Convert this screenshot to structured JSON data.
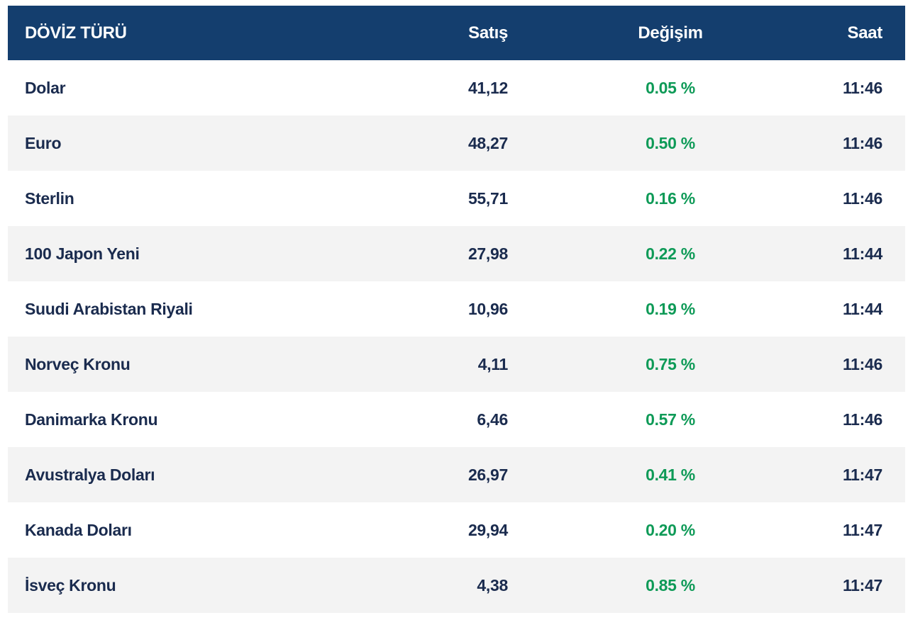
{
  "colors": {
    "header_bg": "#143E6E",
    "header_text": "#FFFFFF",
    "text": "#1A2B4E",
    "positive": "#0E9A57",
    "stripe": "#F3F3F3"
  },
  "table": {
    "columns": {
      "currency": "DÖVİZ TÜRÜ",
      "satis": "Satış",
      "degisim": "Değişim",
      "saat": "Saat"
    },
    "rows": [
      {
        "currency": "Dolar",
        "satis": "41,12",
        "degisim": "0.05 %",
        "saat": "11:46"
      },
      {
        "currency": "Euro",
        "satis": "48,27",
        "degisim": "0.50 %",
        "saat": "11:46"
      },
      {
        "currency": "Sterlin",
        "satis": "55,71",
        "degisim": "0.16 %",
        "saat": "11:46"
      },
      {
        "currency": "100 Japon Yeni",
        "satis": "27,98",
        "degisim": "0.22 %",
        "saat": "11:44"
      },
      {
        "currency": "Suudi Arabistan Riyali",
        "satis": "10,96",
        "degisim": "0.19 %",
        "saat": "11:44"
      },
      {
        "currency": "Norveç Kronu",
        "satis": "4,11",
        "degisim": "0.75 %",
        "saat": "11:46"
      },
      {
        "currency": "Danimarka Kronu",
        "satis": "6,46",
        "degisim": "0.57 %",
        "saat": "11:46"
      },
      {
        "currency": "Avustralya Doları",
        "satis": "26,97",
        "degisim": "0.41 %",
        "saat": "11:47"
      },
      {
        "currency": "Kanada Doları",
        "satis": "29,94",
        "degisim": "0.20 %",
        "saat": "11:47"
      },
      {
        "currency": "İsveç Kronu",
        "satis": "4,38",
        "degisim": "0.85 %",
        "saat": "11:47"
      }
    ]
  }
}
